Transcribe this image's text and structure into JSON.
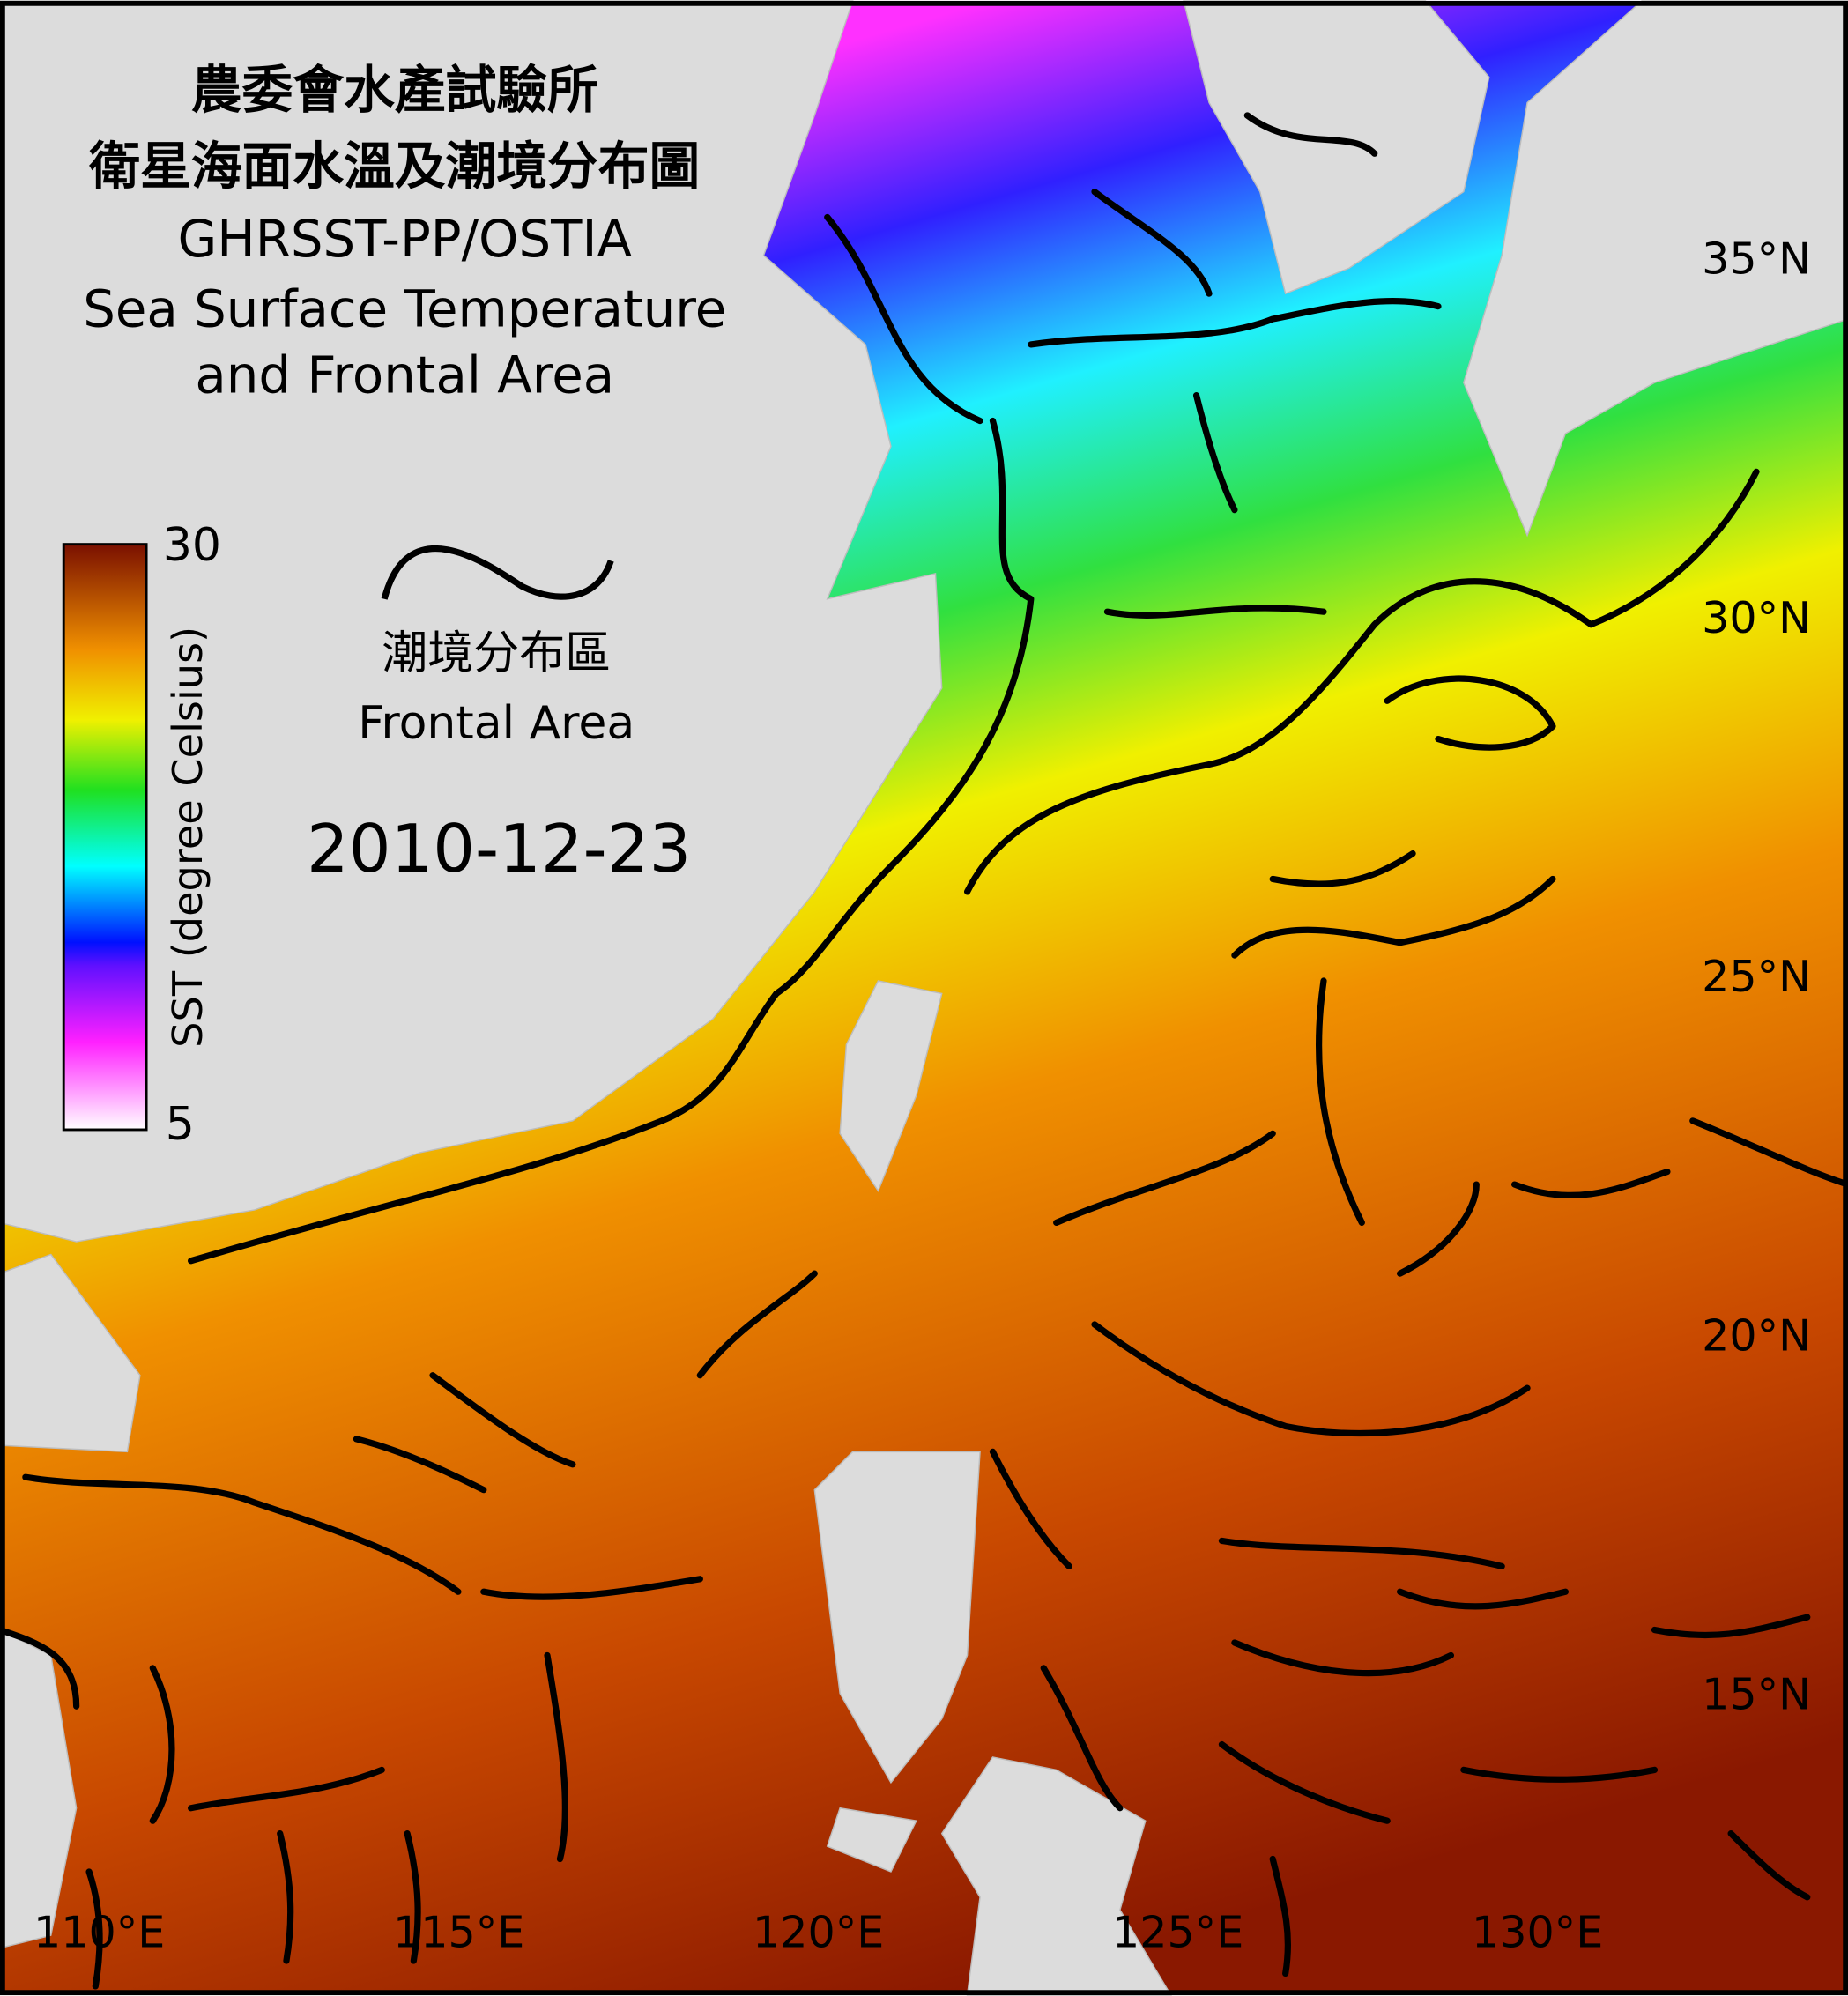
{
  "title_zh": "農委會水產試驗所",
  "subtitle_zh": "衛星海面水溫及潮境分布圖",
  "title_en": [
    "GHRSST-PP/OSTIA",
    "Sea Surface Temperature",
    "and Frontal Area"
  ],
  "legend": {
    "label_zh": "潮境分布區",
    "label_en": "Frontal Area"
  },
  "date": "2010-12-23",
  "colorbar": {
    "label": "SST (degree Celsius)",
    "ticks": [
      30,
      5
    ]
  },
  "lat_labels": [
    "35°N",
    "30°N",
    "25°N",
    "20°N",
    "15°N"
  ],
  "lon_labels": [
    "110°E",
    "115°E",
    "120°E",
    "125°E",
    "130°E"
  ]
}
